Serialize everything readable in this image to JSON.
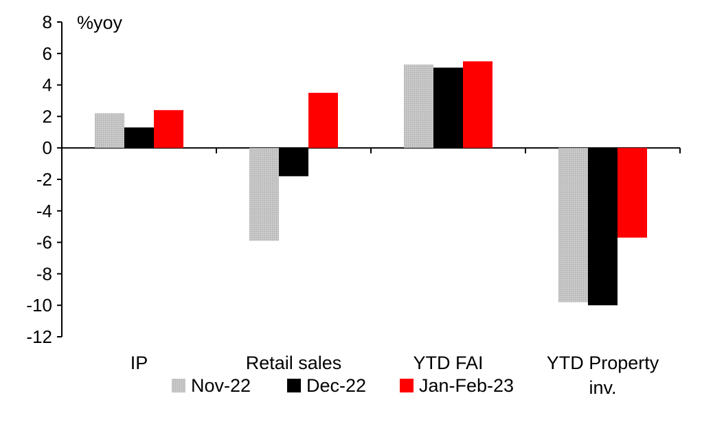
{
  "chart_data": {
    "type": "bar",
    "unit_label": "%yoy",
    "categories": [
      [
        "IP"
      ],
      [
        "Retail sales"
      ],
      [
        "YTD FAI"
      ],
      [
        "YTD Property",
        "inv."
      ]
    ],
    "series": [
      {
        "name": "Nov-22",
        "color": "#c0c0c0",
        "values": [
          2.2,
          -5.9,
          5.3,
          -9.8
        ]
      },
      {
        "name": "Dec-22",
        "color": "#000000",
        "values": [
          1.3,
          -1.8,
          5.1,
          -10.0
        ]
      },
      {
        "name": "Jan-Feb-23",
        "color": "#ff0000",
        "values": [
          2.4,
          3.5,
          5.5,
          -5.7
        ]
      }
    ],
    "ylim": [
      -12,
      8
    ],
    "yticks": [
      8,
      6,
      4,
      2,
      0,
      -2,
      -4,
      -6,
      -8,
      -10,
      -12
    ],
    "grid": false,
    "legend_position": "bottom"
  }
}
